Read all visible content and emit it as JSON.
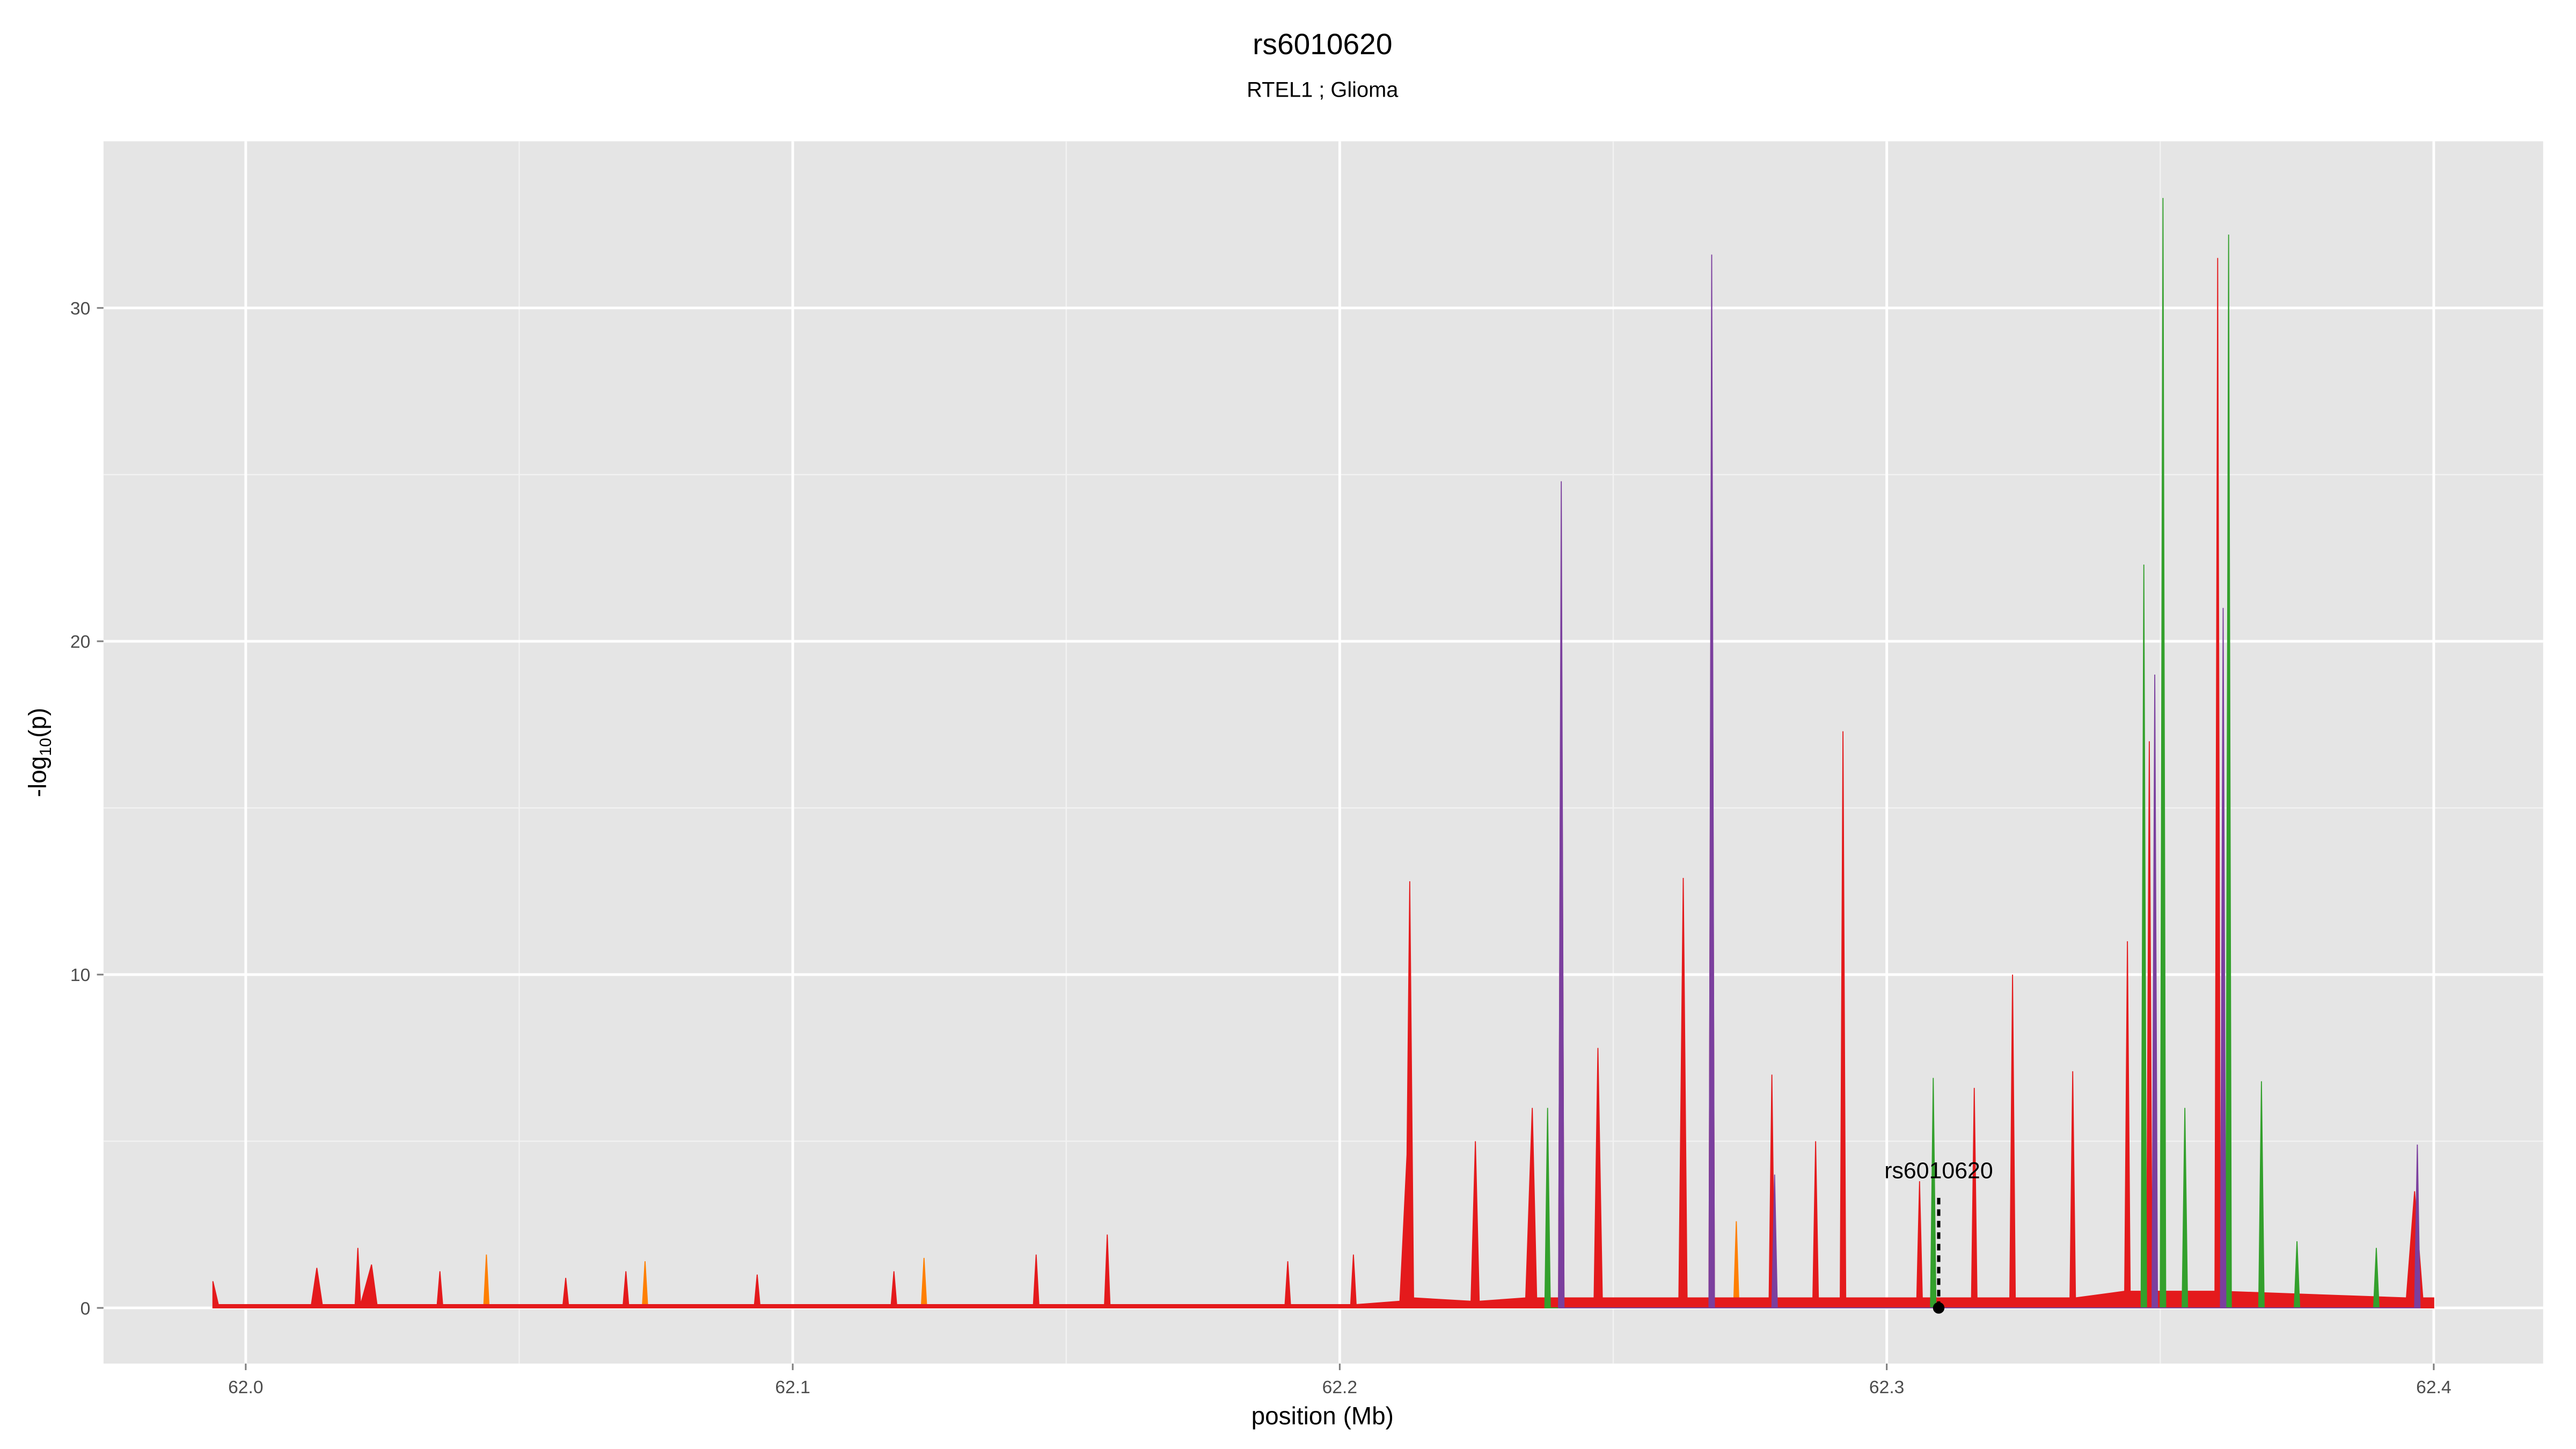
{
  "chart_data": {
    "type": "area",
    "title": "rs6010620",
    "subtitle": "RTEL1 ; Glioma",
    "x_label": "position (Mb)",
    "y_label": {
      "main": "-log",
      "sub": "10",
      "end": "(p)"
    },
    "xlim": [
      61.974,
      62.42
    ],
    "ylim": [
      -1.67,
      35
    ],
    "xticks": [
      {
        "value": 62,
        "label": "62.0"
      },
      62.1,
      62.2,
      62.3,
      62.4
    ],
    "yticks": [
      0,
      10,
      20,
      30
    ],
    "grid": true,
    "series": [
      {
        "color": "#ff7f00",
        "x": [
          62.0435,
          62.044,
          62.0445,
          62.0725,
          62.073,
          62.0735,
          62.1235,
          62.124,
          62.1245,
          62.272,
          62.2725,
          62.273
        ],
        "values": [
          0,
          1.6,
          0,
          0,
          1.4,
          0,
          0,
          1.5,
          0,
          0,
          2.6,
          0
        ]
      },
      {
        "color": "#e41a1c",
        "x": [
          61.994,
          61.995,
          62.012,
          62.013,
          62.014,
          62.02,
          62.0205,
          62.021,
          62.023,
          62.024,
          62.035,
          62.0355,
          62.036,
          62.058,
          62.0585,
          62.059,
          62.069,
          62.0695,
          62.07,
          62.093,
          62.0935,
          62.094,
          62.118,
          62.1185,
          62.119,
          62.144,
          62.1445,
          62.145,
          62.157,
          62.1575,
          62.158,
          62.19,
          62.1905,
          62.191,
          62.202,
          62.2025,
          62.203,
          62.211,
          62.2123,
          62.2128,
          62.2135,
          62.224,
          62.2248,
          62.2255,
          62.234,
          62.2352,
          62.236,
          62.24,
          62.2405,
          62.241,
          62.2465,
          62.2472,
          62.248,
          62.262,
          62.2628,
          62.2635,
          62.2675,
          62.268,
          62.2685,
          62.2785,
          62.279,
          62.2795,
          62.2865,
          62.287,
          62.2875,
          62.2915,
          62.292,
          62.2925,
          62.3055,
          62.306,
          62.3065,
          62.3155,
          62.316,
          62.3165,
          62.3225,
          62.323,
          62.3235,
          62.3335,
          62.334,
          62.3345,
          62.3435,
          62.344,
          62.3445,
          62.3475,
          62.348,
          62.3485,
          62.36,
          62.3605,
          62.361,
          62.395,
          62.3965,
          62.398,
          62.4
        ],
        "values": [
          0.8,
          0.1,
          0.1,
          1.2,
          0.1,
          0.1,
          1.8,
          0.1,
          1.3,
          0.1,
          0.1,
          1.1,
          0.1,
          0.1,
          0.9,
          0.1,
          0.1,
          1.1,
          0.1,
          0.1,
          1.0,
          0.1,
          0.1,
          1.1,
          0.1,
          0.1,
          1.6,
          0.1,
          0.1,
          2.2,
          0.1,
          0.1,
          1.4,
          0.1,
          0.1,
          1.6,
          0.1,
          0.2,
          4.6,
          12.8,
          0.3,
          0.2,
          5.0,
          0.2,
          0.3,
          6.0,
          0.3,
          0.3,
          23,
          0.3,
          0.3,
          7.8,
          0.3,
          0.3,
          12.9,
          0.3,
          0.3,
          29,
          0.3,
          0.3,
          7.0,
          0.3,
          0.3,
          5.0,
          0.3,
          0.3,
          17.3,
          0.3,
          0.3,
          3.8,
          0.3,
          0.3,
          6.6,
          0.3,
          0.3,
          10.0,
          0.3,
          0.3,
          7.1,
          0.3,
          0.5,
          11.0,
          0.5,
          0.5,
          17.0,
          0.5,
          0.5,
          31.5,
          0.5,
          0.3,
          3.5,
          0.3,
          0.3
        ]
      },
      {
        "color": "#33a02c",
        "x": [
          62.2375,
          62.238,
          62.2385,
          62.308,
          62.3085,
          62.309,
          62.3465,
          62.347,
          62.3475,
          62.35,
          62.3505,
          62.351,
          62.354,
          62.3545,
          62.355,
          62.362,
          62.3625,
          62.363,
          62.368,
          62.3685,
          62.369,
          62.3745,
          62.375,
          62.3755,
          62.389,
          62.3895,
          62.39
        ],
        "values": [
          0,
          6.0,
          0,
          0,
          6.9,
          0,
          0,
          22.3,
          0,
          0,
          33.3,
          0,
          0,
          6.0,
          0,
          0,
          32.2,
          0,
          0,
          6.8,
          0,
          0,
          2.0,
          0,
          0,
          1.8,
          0
        ]
      },
      {
        "color": "#7b3f9e",
        "x": [
          62.24,
          62.2405,
          62.241,
          62.2675,
          62.268,
          62.2685,
          62.279,
          62.2795,
          62.28,
          62.3485,
          62.349,
          62.3495,
          62.361,
          62.3615,
          62.362,
          62.3965,
          62.397,
          62.3975
        ],
        "values": [
          0,
          24.8,
          0,
          0,
          31.6,
          0,
          0,
          4.0,
          0,
          0,
          19.0,
          0,
          0,
          21.0,
          0,
          0,
          4.9,
          0
        ]
      }
    ],
    "annotation": {
      "label": "rs6010620",
      "x": 62.3095,
      "y": 0
    }
  }
}
